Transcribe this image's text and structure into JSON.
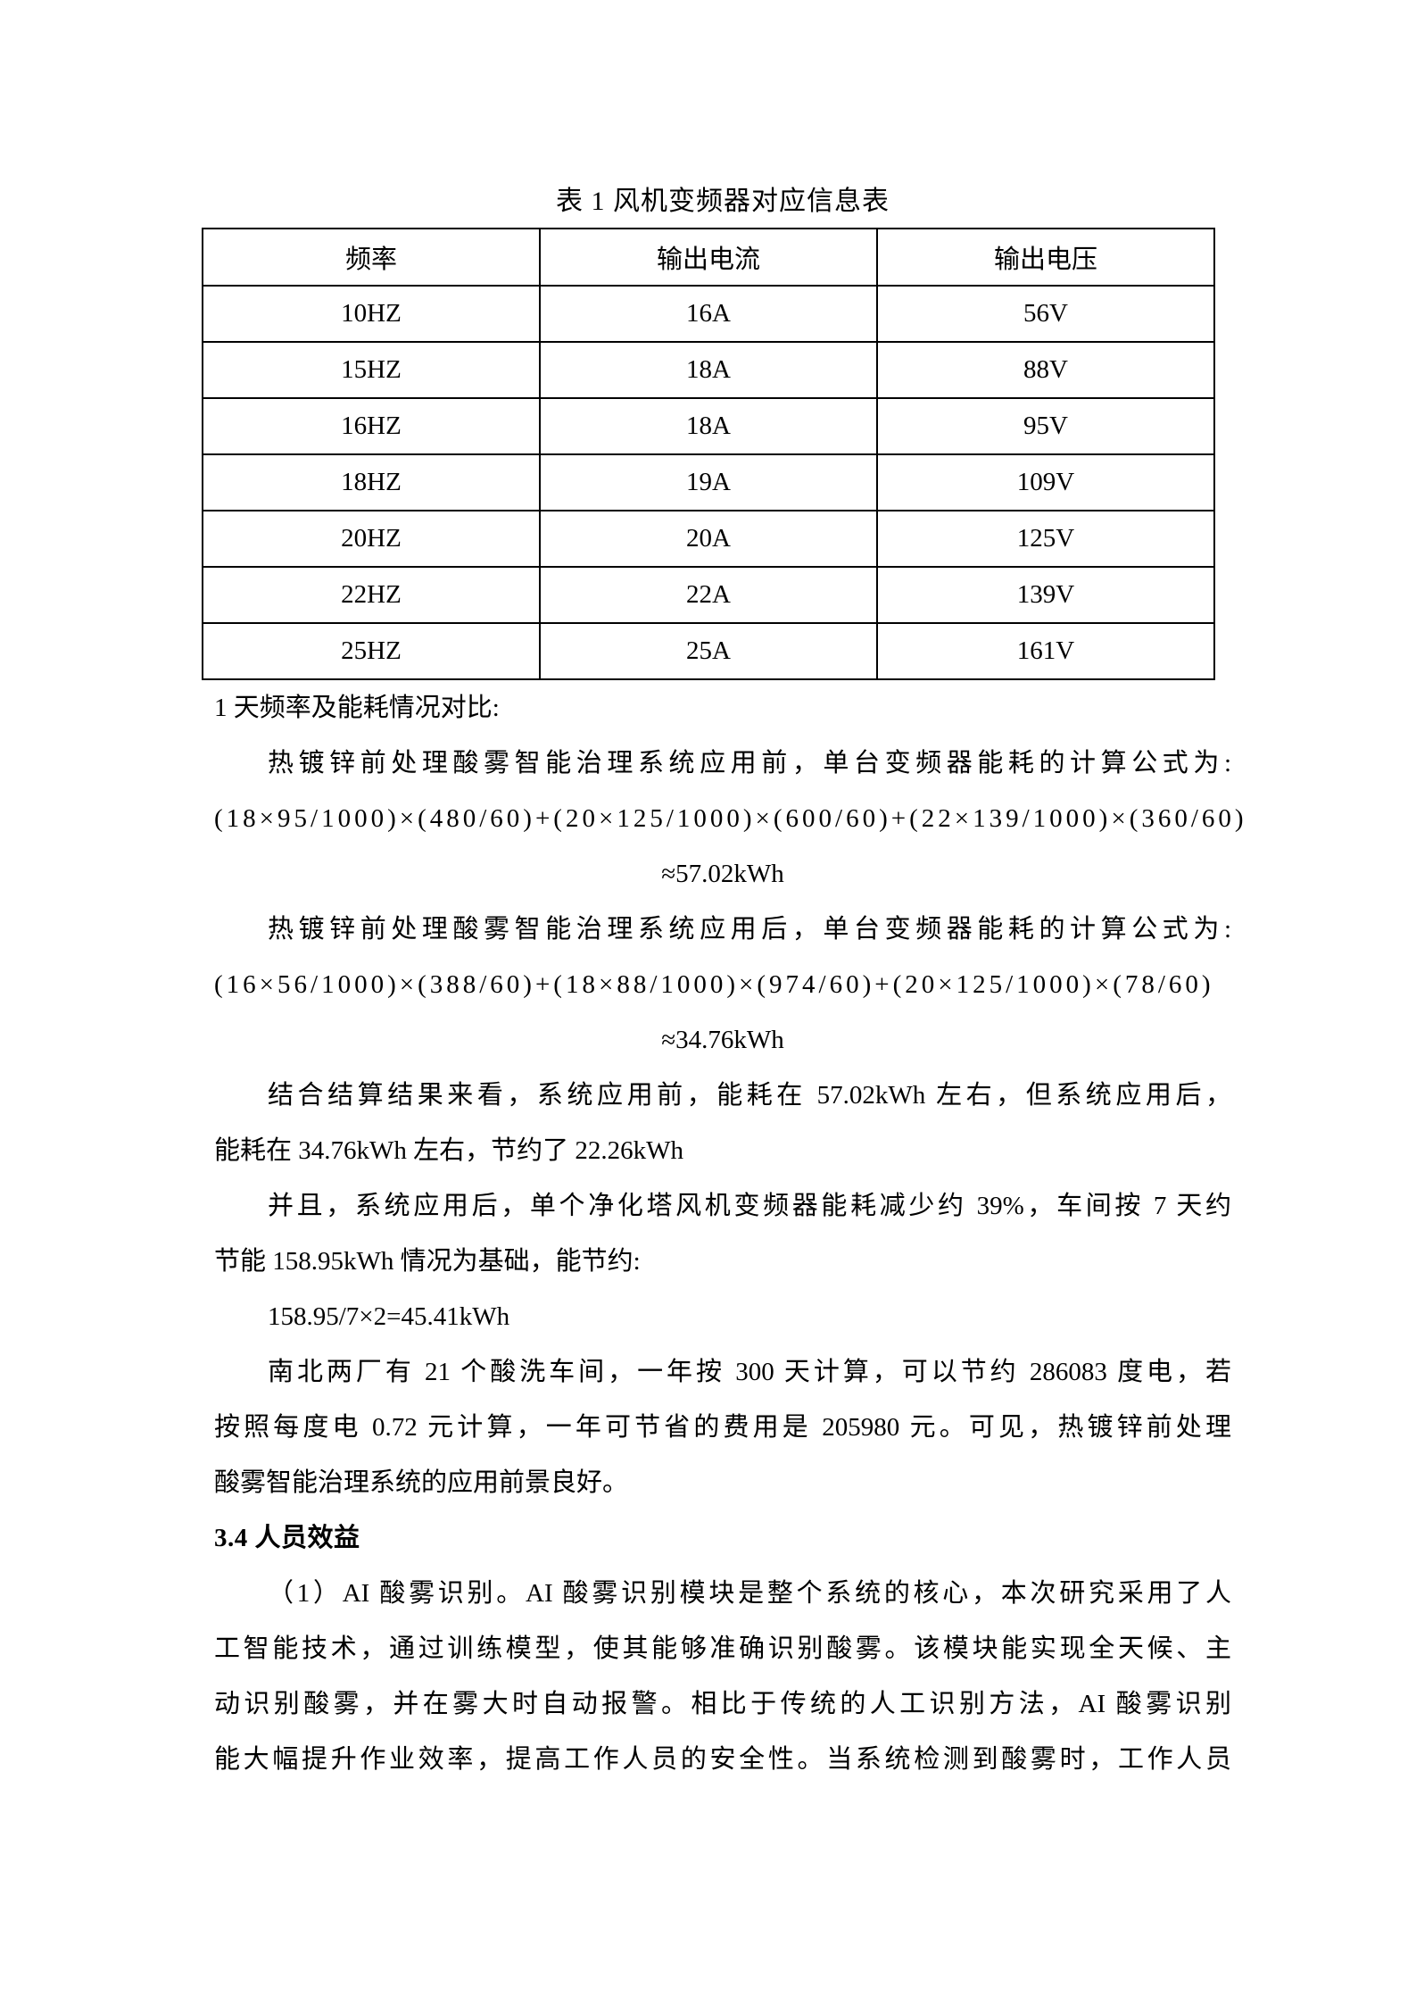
{
  "document": {
    "table_caption": "表 1 风机变频器对应信息表",
    "table": {
      "headers": [
        "频率",
        "输出电流",
        "输出电压"
      ],
      "rows": [
        [
          "10HZ",
          "16A",
          "56V"
        ],
        [
          "15HZ",
          "18A",
          "88V"
        ],
        [
          "16HZ",
          "18A",
          "95V"
        ],
        [
          "18HZ",
          "19A",
          "109V"
        ],
        [
          "20HZ",
          "20A",
          "125V"
        ],
        [
          "22HZ",
          "22A",
          "139V"
        ],
        [
          "25HZ",
          "25A",
          "161V"
        ]
      ]
    },
    "lines": [
      "1 天频率及能耗情况对比:",
      "热镀锌前处理酸雾智能治理系统应用前，单台变频器能耗的计算公式为:",
      "(18×95/1000)×(480/60)+(20×125/1000)×(600/60)+(22×139/1000)×(360/60)",
      "≈57.02kWh",
      "热镀锌前处理酸雾智能治理系统应用后，单台变频器能耗的计算公式为:",
      "(16×56/1000)×(388/60)+(18×88/1000)×(974/60)+(20×125/1000)×(78/60)",
      "≈34.76kWh",
      "结合结算结果来看，系统应用前，能耗在 57.02kWh 左右，但系统应用后，",
      "能耗在 34.76kWh 左右，节约了 22.26kWh",
      "并且，系统应用后，单个净化塔风机变频器能耗减少约 39%，车间按 7 天约",
      "节能 158.95kWh 情况为基础，能节约:",
      "158.95/7×2=45.41kWh",
      "南北两厂有 21 个酸洗车间，一年按 300 天计算，可以节约 286083 度电，若",
      "按照每度电 0.72 元计算，一年可节省的费用是 205980 元。可见，热镀锌前处理",
      "酸雾智能治理系统的应用前景良好。",
      "3.4 人员效益",
      "（1）AI 酸雾识别。AI 酸雾识别模块是整个系统的核心，本次研究采用了人",
      "工智能技术，通过训练模型，使其能够准确识别酸雾。该模块能实现全天候、主",
      "动识别酸雾，并在雾大时自动报警。相比于传统的人工识别方法，AI 酸雾识别",
      "能大幅提升作业效率，提高工作人员的安全性。当系统检测到酸雾时，工作人员"
    ]
  }
}
